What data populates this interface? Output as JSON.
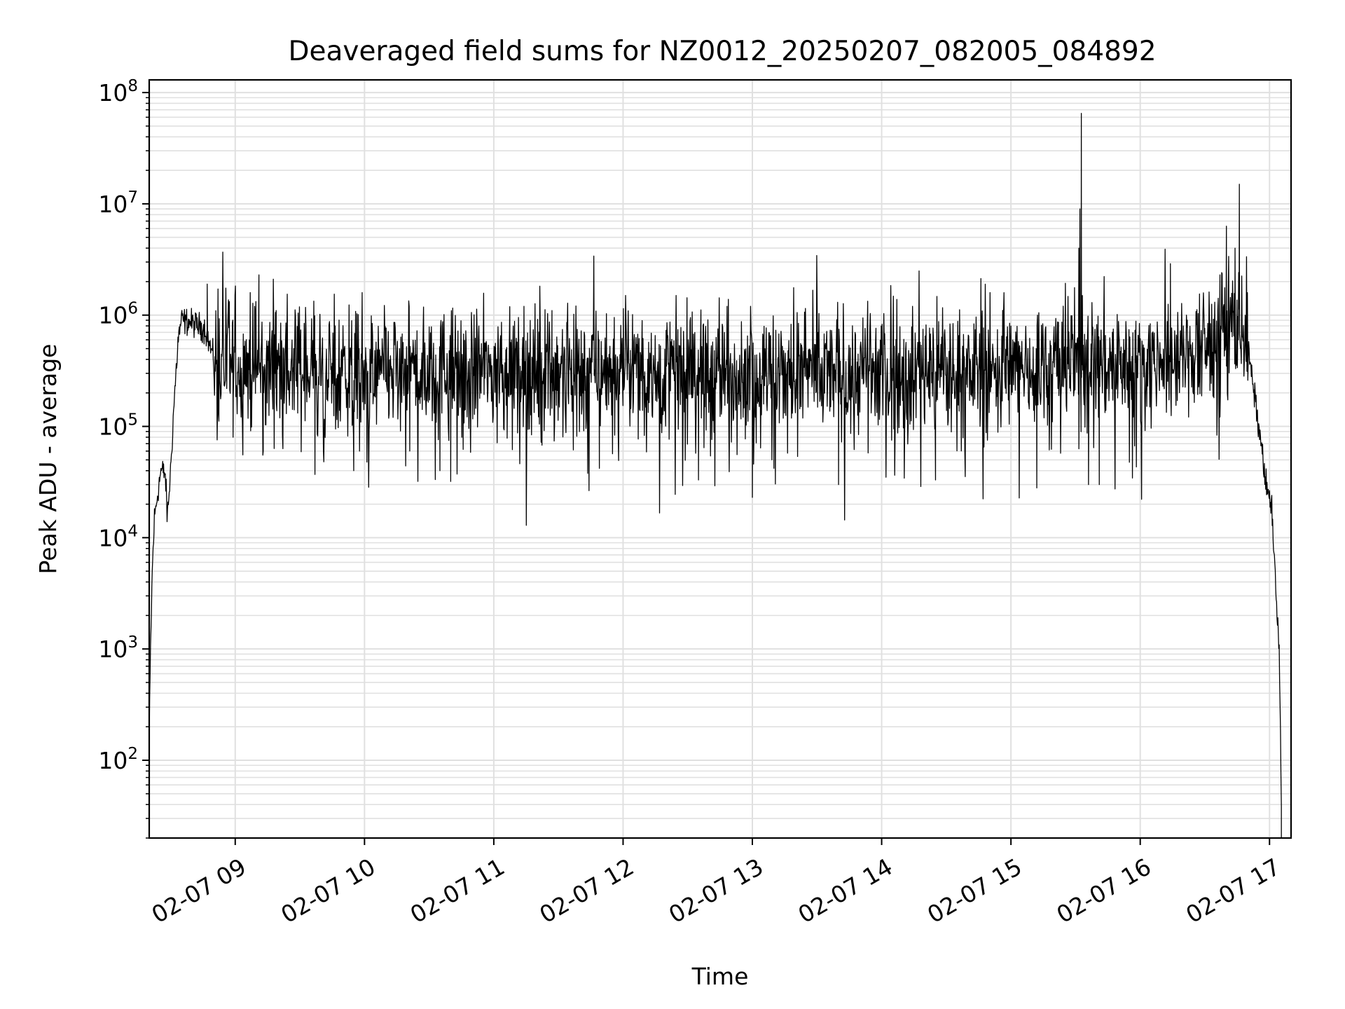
{
  "chart_data": {
    "type": "line",
    "title": "Deaveraged field sums for NZ0012_20250207_082005_084892",
    "xlabel": "Time",
    "ylabel": "Peak ADU - average",
    "x_scale": "time",
    "y_scale": "log",
    "xlim": [
      "2025-02-07 08:20:05",
      "2025-02-07 17:10:00"
    ],
    "ylim": [
      20,
      130000000
    ],
    "grid": {
      "major": true,
      "minor_y": true,
      "color": "#e0e0e0"
    },
    "legend": "none",
    "x_ticks": [
      {
        "value": "2025-02-07 09:00",
        "label": "02-07 09"
      },
      {
        "value": "2025-02-07 10:00",
        "label": "02-07 10"
      },
      {
        "value": "2025-02-07 11:00",
        "label": "02-07 11"
      },
      {
        "value": "2025-02-07 12:00",
        "label": "02-07 12"
      },
      {
        "value": "2025-02-07 13:00",
        "label": "02-07 13"
      },
      {
        "value": "2025-02-07 14:00",
        "label": "02-07 14"
      },
      {
        "value": "2025-02-07 15:00",
        "label": "02-07 15"
      },
      {
        "value": "2025-02-07 16:00",
        "label": "02-07 16"
      },
      {
        "value": "2025-02-07 17:00",
        "label": "02-07 17"
      }
    ],
    "y_ticks": [
      {
        "value": 100,
        "base": "10",
        "exp": "2"
      },
      {
        "value": 1000,
        "base": "10",
        "exp": "3"
      },
      {
        "value": 10000,
        "base": "10",
        "exp": "4"
      },
      {
        "value": 100000,
        "base": "10",
        "exp": "5"
      },
      {
        "value": 1000000,
        "base": "10",
        "exp": "6"
      },
      {
        "value": 10000000,
        "base": "10",
        "exp": "7"
      },
      {
        "value": 100000000,
        "base": "10",
        "exp": "8"
      }
    ],
    "series": [
      {
        "color": "#000000",
        "noise_amplitude_decades": 0.28,
        "points": [
          {
            "t": "2025-02-07 08:20:05",
            "y": 150
          },
          {
            "t": "2025-02-07 08:20:40",
            "y": 900
          },
          {
            "t": "2025-02-07 08:21:30",
            "y": 5000
          },
          {
            "t": "2025-02-07 08:22:30",
            "y": 15000
          },
          {
            "t": "2025-02-07 08:24:00",
            "y": 25000
          },
          {
            "t": "2025-02-07 08:25:30",
            "y": 40000
          },
          {
            "t": "2025-02-07 08:27:30",
            "y": 38000
          },
          {
            "t": "2025-02-07 08:28:30",
            "y": 15000
          },
          {
            "t": "2025-02-07 08:30:00",
            "y": 40000
          },
          {
            "t": "2025-02-07 08:31:30",
            "y": 150000
          },
          {
            "t": "2025-02-07 08:33:30",
            "y": 600000
          },
          {
            "t": "2025-02-07 08:35:00",
            "y": 900000
          },
          {
            "t": "2025-02-07 08:40:00",
            "y": 850000
          },
          {
            "t": "2025-02-07 08:46:00",
            "y": 750000
          },
          {
            "t": "2025-02-07 08:50:00",
            "y": 400000
          },
          {
            "t": "2025-02-07 09:00:00",
            "y": 350000
          },
          {
            "t": "2025-02-07 10:00:00",
            "y": 300000
          },
          {
            "t": "2025-02-07 11:00:00",
            "y": 320000
          },
          {
            "t": "2025-02-07 12:00:00",
            "y": 320000
          },
          {
            "t": "2025-02-07 13:00:00",
            "y": 300000
          },
          {
            "t": "2025-02-07 14:00:00",
            "y": 300000
          },
          {
            "t": "2025-02-07 15:00:00",
            "y": 330000
          },
          {
            "t": "2025-02-07 15:28:00",
            "y": 400000
          },
          {
            "t": "2025-02-07 16:00:00",
            "y": 350000
          },
          {
            "t": "2025-02-07 16:20:00",
            "y": 400000
          },
          {
            "t": "2025-02-07 16:30:00",
            "y": 500000
          },
          {
            "t": "2025-02-07 16:40:00",
            "y": 800000
          },
          {
            "t": "2025-02-07 16:47:00",
            "y": 900000
          },
          {
            "t": "2025-02-07 16:50:00",
            "y": 500000
          },
          {
            "t": "2025-02-07 16:55:00",
            "y": 100000
          },
          {
            "t": "2025-02-07 16:59:00",
            "y": 25000
          },
          {
            "t": "2025-02-07 17:01:00",
            "y": 20000
          },
          {
            "t": "2025-02-07 17:03:00",
            "y": 3000
          },
          {
            "t": "2025-02-07 17:04:30",
            "y": 1000
          },
          {
            "t": "2025-02-07 17:05:30",
            "y": 40
          }
        ],
        "spikes": [
          {
            "t": "2025-02-07 08:47:00",
            "y": 1900000
          },
          {
            "t": "2025-02-07 09:11:00",
            "y": 2300000
          },
          {
            "t": "2025-02-07 09:09:00",
            "y": 1200000
          },
          {
            "t": "2025-02-07 09:19:00",
            "y": 1100000
          },
          {
            "t": "2025-02-07 11:14:00",
            "y": 1200000
          },
          {
            "t": "2025-02-07 11:27:00",
            "y": 1100000
          },
          {
            "t": "2025-02-07 15:31:30",
            "y": 4000000
          },
          {
            "t": "2025-02-07 15:32:00",
            "y": 9000000
          },
          {
            "t": "2025-02-07 15:32:40",
            "y": 65000000
          },
          {
            "t": "2025-02-07 15:33:10",
            "y": 1500000
          },
          {
            "t": "2025-02-07 16:14:00",
            "y": 2900000
          },
          {
            "t": "2025-02-07 16:37:00",
            "y": 2300000
          },
          {
            "t": "2025-02-07 16:40:00",
            "y": 6300000
          },
          {
            "t": "2025-02-07 16:44:00",
            "y": 4000000
          },
          {
            "t": "2025-02-07 16:46:00",
            "y": 15000000
          },
          {
            "t": "2025-02-07 08:59:00",
            "y": 80000
          },
          {
            "t": "2025-02-07 09:13:00",
            "y": 60000
          },
          {
            "t": "2025-02-07 09:37:00",
            "y": 37000
          },
          {
            "t": "2025-02-07 09:55:00",
            "y": 40000
          },
          {
            "t": "2025-02-07 10:21:00",
            "y": 60000
          },
          {
            "t": "2025-02-07 10:35:00",
            "y": 40000
          },
          {
            "t": "2025-02-07 10:40:00",
            "y": 32000
          },
          {
            "t": "2025-02-07 11:49:00",
            "y": 42000
          },
          {
            "t": "2025-02-07 12:35:00",
            "y": 33000
          },
          {
            "t": "2025-02-07 13:00:00",
            "y": 23000
          },
          {
            "t": "2025-02-07 13:10:00",
            "y": 42000
          },
          {
            "t": "2025-02-07 13:40:00",
            "y": 30000
          },
          {
            "t": "2025-02-07 14:25:00",
            "y": 33000
          },
          {
            "t": "2025-02-07 15:12:00",
            "y": 28000
          },
          {
            "t": "2025-02-07 15:36:00",
            "y": 30000
          },
          {
            "t": "2025-02-07 15:41:00",
            "y": 30000
          }
        ]
      }
    ]
  }
}
